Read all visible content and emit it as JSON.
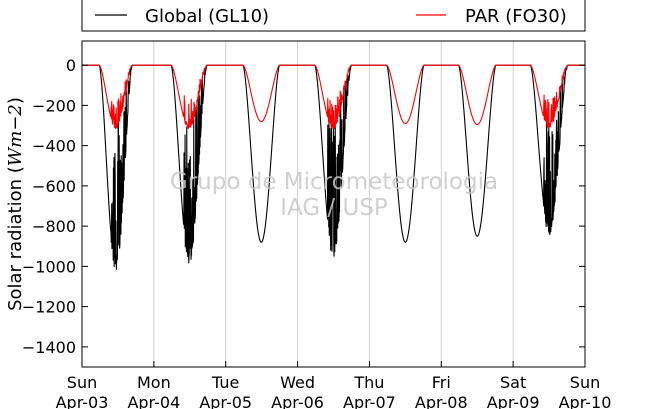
{
  "chart_data": {
    "type": "line",
    "title": "",
    "xlabel": "",
    "ylabel_prefix": "Solar radiation (",
    "ylabel_unit": "Wm−2",
    "ylabel_suffix": ")",
    "ylim": [
      -1500,
      120
    ],
    "yticks": [
      0,
      -200,
      -400,
      -600,
      -800,
      -1000,
      -1200,
      -1400
    ],
    "xlim": [
      0,
      7
    ],
    "grid": "vertical dividers between days",
    "legend_placement": "top, above plot",
    "watermark": [
      "Grupo de Micrometeorologia",
      "IAG / USP"
    ],
    "xtick_labels": [
      {
        "day": "Sun",
        "date": "Apr-03"
      },
      {
        "day": "Mon",
        "date": "Apr-04"
      },
      {
        "day": "Tue",
        "date": "Apr-05"
      },
      {
        "day": "Wed",
        "date": "Apr-06"
      },
      {
        "day": "Thu",
        "date": "Apr-07"
      },
      {
        "day": "Fri",
        "date": "Apr-08"
      },
      {
        "day": "Sat",
        "date": "Apr-09"
      },
      {
        "day": "Sun",
        "date": "Apr-10"
      }
    ],
    "series": [
      {
        "name": "Global (GL10)",
        "color": "#000000",
        "daily_sunrise": [
          0.24,
          1.24,
          2.24,
          3.24,
          4.24,
          5.24,
          6.24
        ],
        "daily_sunset": [
          0.7,
          1.74,
          2.75,
          3.75,
          4.76,
          5.76,
          6.76
        ],
        "daily_peak": [
          -1000,
          -960,
          -880,
          -930,
          -880,
          -850,
          -820
        ],
        "daily_cloudy": [
          true,
          true,
          false,
          true,
          false,
          false,
          true
        ]
      },
      {
        "name": "PAR (FO30)",
        "color": "#ff0000",
        "daily_sunrise": [
          0.24,
          1.24,
          2.24,
          3.24,
          4.24,
          5.24,
          6.24
        ],
        "daily_sunset": [
          0.7,
          1.74,
          2.75,
          3.75,
          4.76,
          5.76,
          6.76
        ],
        "daily_peak": [
          -310,
          -310,
          -280,
          -310,
          -290,
          -295,
          -305
        ],
        "daily_cloudy": [
          true,
          true,
          false,
          true,
          false,
          false,
          true
        ]
      }
    ]
  }
}
